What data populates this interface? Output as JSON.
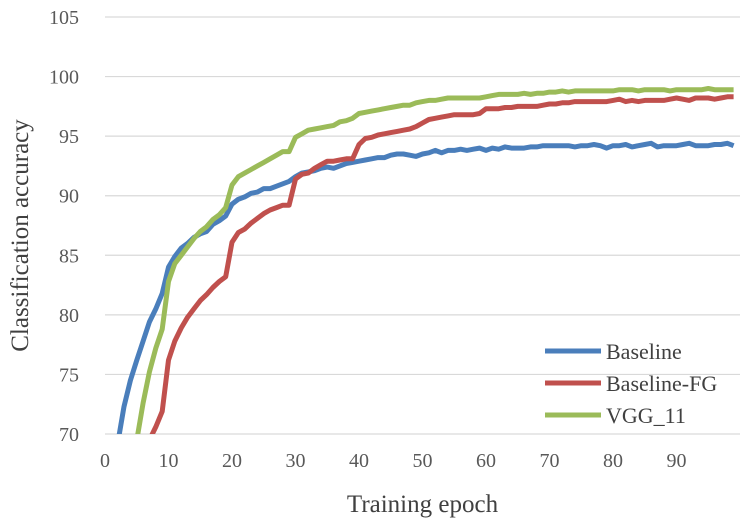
{
  "chart_data": {
    "type": "line",
    "title": "",
    "xlabel": "Training epoch",
    "ylabel": "Classification accuracy",
    "xlim": [
      0,
      100
    ],
    "ylim": [
      70,
      105
    ],
    "x_ticks": [
      0,
      10,
      20,
      30,
      40,
      50,
      60,
      70,
      80,
      90
    ],
    "y_ticks": [
      70,
      75,
      80,
      85,
      90,
      95,
      100,
      105
    ],
    "grid": true,
    "legend_position": "bottom-right",
    "series": [
      {
        "name": "Baseline",
        "color": "#4a7ebb",
        "x": [
          2,
          3,
          4,
          5,
          6,
          7,
          8,
          9,
          10,
          11,
          12,
          13,
          14,
          15,
          16,
          17,
          18,
          19,
          20,
          21,
          22,
          23,
          24,
          25,
          26,
          27,
          28,
          29,
          30,
          31,
          32,
          33,
          34,
          35,
          36,
          37,
          38,
          39,
          40,
          41,
          42,
          43,
          44,
          45,
          46,
          47,
          48,
          49,
          50,
          51,
          52,
          53,
          54,
          55,
          56,
          57,
          58,
          59,
          60,
          61,
          62,
          63,
          64,
          65,
          66,
          67,
          68,
          69,
          70,
          71,
          72,
          73,
          74,
          75,
          76,
          77,
          78,
          79,
          80,
          81,
          82,
          83,
          84,
          85,
          86,
          87,
          88,
          89,
          90,
          91,
          92,
          93,
          94,
          95,
          96,
          97,
          98,
          99
        ],
        "values": [
          69.2,
          72.3,
          74.5,
          76.2,
          77.8,
          79.4,
          80.5,
          81.8,
          84.0,
          84.9,
          85.6,
          86.0,
          86.5,
          86.8,
          87.0,
          87.6,
          87.9,
          88.3,
          89.3,
          89.7,
          89.9,
          90.2,
          90.3,
          90.6,
          90.6,
          90.8,
          91.0,
          91.2,
          91.6,
          91.9,
          92.0,
          92.1,
          92.3,
          92.4,
          92.3,
          92.5,
          92.7,
          92.8,
          92.9,
          93.0,
          93.1,
          93.2,
          93.2,
          93.4,
          93.5,
          93.5,
          93.4,
          93.3,
          93.5,
          93.6,
          93.8,
          93.6,
          93.8,
          93.8,
          93.9,
          93.8,
          93.9,
          94.0,
          93.8,
          94.0,
          93.9,
          94.1,
          94.0,
          94.0,
          94.0,
          94.1,
          94.1,
          94.2,
          94.2,
          94.2,
          94.2,
          94.2,
          94.1,
          94.2,
          94.2,
          94.3,
          94.2,
          94.0,
          94.2,
          94.2,
          94.3,
          94.1,
          94.2,
          94.3,
          94.4,
          94.1,
          94.2,
          94.2,
          94.2,
          94.3,
          94.4,
          94.2,
          94.2,
          94.2,
          94.3,
          94.3,
          94.4,
          94.2
        ]
      },
      {
        "name": "Baseline-FG",
        "color": "#c0504d",
        "x": [
          7,
          8,
          9,
          10,
          11,
          12,
          13,
          14,
          15,
          16,
          17,
          18,
          19,
          20,
          21,
          22,
          23,
          24,
          25,
          26,
          27,
          28,
          29,
          30,
          31,
          32,
          33,
          34,
          35,
          36,
          37,
          38,
          39,
          40,
          41,
          42,
          43,
          44,
          45,
          46,
          47,
          48,
          49,
          50,
          51,
          52,
          53,
          54,
          55,
          56,
          57,
          58,
          59,
          60,
          61,
          62,
          63,
          64,
          65,
          66,
          67,
          68,
          69,
          70,
          71,
          72,
          73,
          74,
          75,
          76,
          77,
          78,
          79,
          80,
          81,
          82,
          83,
          84,
          85,
          86,
          87,
          88,
          89,
          90,
          91,
          92,
          93,
          94,
          95,
          96,
          97,
          98,
          99
        ],
        "values": [
          69.5,
          70.6,
          71.9,
          76.2,
          77.8,
          78.9,
          79.8,
          80.5,
          81.2,
          81.7,
          82.3,
          82.8,
          83.2,
          86.1,
          86.9,
          87.2,
          87.7,
          88.1,
          88.5,
          88.8,
          89.0,
          89.2,
          89.2,
          91.4,
          91.8,
          91.9,
          92.3,
          92.6,
          92.9,
          92.9,
          93.0,
          93.1,
          93.1,
          94.3,
          94.8,
          94.9,
          95.1,
          95.2,
          95.3,
          95.4,
          95.5,
          95.6,
          95.8,
          96.1,
          96.4,
          96.5,
          96.6,
          96.7,
          96.8,
          96.8,
          96.8,
          96.8,
          96.9,
          97.3,
          97.3,
          97.3,
          97.4,
          97.4,
          97.5,
          97.5,
          97.5,
          97.5,
          97.6,
          97.7,
          97.7,
          97.8,
          97.8,
          97.9,
          97.9,
          97.9,
          97.9,
          97.9,
          97.9,
          98.0,
          98.1,
          97.9,
          98.0,
          97.9,
          98.0,
          98.0,
          98.0,
          98.0,
          98.1,
          98.2,
          98.1,
          98.0,
          98.2,
          98.2,
          98.2,
          98.1,
          98.2,
          98.3,
          98.3
        ]
      },
      {
        "name": "VGG_11",
        "color": "#9bbb59",
        "x": [
          5,
          6,
          7,
          8,
          9,
          10,
          11,
          12,
          13,
          14,
          15,
          16,
          17,
          18,
          19,
          20,
          21,
          22,
          23,
          24,
          25,
          26,
          27,
          28,
          29,
          30,
          31,
          32,
          33,
          34,
          35,
          36,
          37,
          38,
          39,
          40,
          41,
          42,
          43,
          44,
          45,
          46,
          47,
          48,
          49,
          50,
          51,
          52,
          53,
          54,
          55,
          56,
          57,
          58,
          59,
          60,
          61,
          62,
          63,
          64,
          65,
          66,
          67,
          68,
          69,
          70,
          71,
          72,
          73,
          74,
          75,
          76,
          77,
          78,
          79,
          80,
          81,
          82,
          83,
          84,
          85,
          86,
          87,
          88,
          89,
          90,
          91,
          92,
          93,
          94,
          95,
          96,
          97,
          98,
          99
        ],
        "values": [
          69.5,
          72.6,
          75.2,
          77.2,
          78.8,
          82.8,
          84.3,
          85.0,
          85.7,
          86.4,
          87.0,
          87.4,
          88.0,
          88.4,
          89.0,
          90.9,
          91.6,
          91.9,
          92.2,
          92.5,
          92.8,
          93.1,
          93.4,
          93.7,
          93.7,
          94.9,
          95.2,
          95.5,
          95.6,
          95.7,
          95.8,
          95.9,
          96.2,
          96.3,
          96.5,
          96.9,
          97.0,
          97.1,
          97.2,
          97.3,
          97.4,
          97.5,
          97.6,
          97.6,
          97.8,
          97.9,
          98.0,
          98.0,
          98.1,
          98.2,
          98.2,
          98.2,
          98.2,
          98.2,
          98.2,
          98.3,
          98.4,
          98.5,
          98.5,
          98.5,
          98.5,
          98.6,
          98.5,
          98.6,
          98.6,
          98.7,
          98.7,
          98.8,
          98.7,
          98.8,
          98.8,
          98.8,
          98.8,
          98.8,
          98.8,
          98.8,
          98.9,
          98.9,
          98.9,
          98.8,
          98.9,
          98.9,
          98.9,
          98.9,
          98.8,
          98.9,
          98.9,
          98.9,
          98.9,
          98.9,
          99.0,
          98.9,
          98.9,
          98.9,
          98.9
        ]
      }
    ]
  }
}
